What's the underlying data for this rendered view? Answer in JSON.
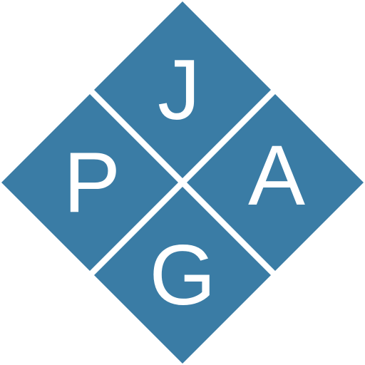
{
  "logo": {
    "letters": {
      "top": "J",
      "left": "P",
      "right": "A",
      "bottom": "G"
    },
    "colors": {
      "tile": "#3a7ca5",
      "letter": "#ffffff",
      "background": "#ffffff"
    }
  }
}
